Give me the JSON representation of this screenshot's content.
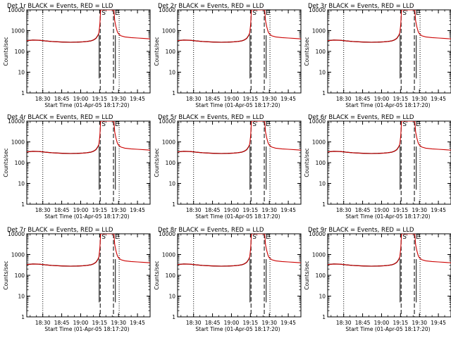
{
  "chart_data": {
    "type": "line",
    "layout": "3x3 grid",
    "y_scale": "log",
    "ylim": [
      1,
      10000
    ],
    "y_ticks": [
      1,
      10,
      100,
      1000,
      10000
    ],
    "y_tick_labels": [
      "1",
      "10",
      "100",
      "1000",
      "10000"
    ],
    "ylabel": "Counts/sec",
    "xlabel": "Start Time (01-Apr-05 18:17:20)",
    "x_tick_labels": [
      "18:30",
      "18:45",
      "19:00",
      "19:15",
      "19:30",
      "19:45"
    ],
    "x_tick_minutes": [
      30,
      45,
      60,
      75,
      90,
      105
    ],
    "xlim_minutes": [
      17.33,
      115
    ],
    "legend_text": "BLACK = Events, RED = LLD",
    "colors": {
      "events": "#000000",
      "lld": "#cc0000",
      "axes": "#000000"
    },
    "panels": [
      {
        "detector": "1r",
        "title": "Det 1r BLACK = Events, RED = LLD"
      },
      {
        "detector": "2r",
        "title": "Det 2r BLACK = Events, RED = LLD"
      },
      {
        "detector": "3r",
        "title": "Det 3r BLACK = Events, RED = LLD"
      },
      {
        "detector": "4r",
        "title": "Det 4r BLACK = Events, RED = LLD"
      },
      {
        "detector": "5r",
        "title": "Det 5r BLACK = Events, RED = LLD"
      },
      {
        "detector": "6r",
        "title": "Det 6r BLACK = Events, RED = LLD"
      },
      {
        "detector": "7r",
        "title": "Det 7r BLACK = Events, RED = LLD"
      },
      {
        "detector": "8r",
        "title": "Det 8r BLACK = Events, RED = LLD"
      },
      {
        "detector": "9r",
        "title": "Det 9r BLACK = Events, RED = LLD"
      }
    ],
    "markers": [
      {
        "label": "S",
        "minute": 75.5
      },
      {
        "label": "E",
        "minute": 86
      }
    ],
    "vertical_lines": [
      {
        "minute": 30,
        "style": "dotted"
      },
      {
        "minute": 75.5,
        "style": "dashed"
      },
      {
        "minute": 86,
        "style": "dashed"
      },
      {
        "minute": 90.5,
        "style": "dotted"
      }
    ],
    "series": [
      {
        "name": "Events",
        "x_minutes": [
          17.3,
          22,
          27,
          32,
          37,
          42,
          47,
          52,
          57,
          62,
          65,
          68,
          70,
          72,
          73.5,
          74.5
        ],
        "y": [
          330,
          350,
          345,
          320,
          300,
          290,
          280,
          275,
          280,
          290,
          300,
          320,
          350,
          420,
          560,
          700
        ]
      },
      {
        "name": "LLD",
        "x_minutes": [
          17.3,
          22,
          27,
          32,
          37,
          42,
          47,
          52,
          57,
          62,
          65,
          68,
          70,
          72,
          73.5,
          74.5,
          75.2,
          75.8,
          86.3,
          87,
          88,
          89,
          90,
          92,
          95,
          100,
          105,
          110,
          115
        ],
        "y": [
          330,
          350,
          345,
          320,
          300,
          290,
          280,
          275,
          280,
          290,
          300,
          320,
          350,
          420,
          560,
          800,
          2000,
          10000,
          10000,
          3000,
          1500,
          900,
          700,
          560,
          500,
          460,
          440,
          420,
          400
        ]
      }
    ]
  }
}
